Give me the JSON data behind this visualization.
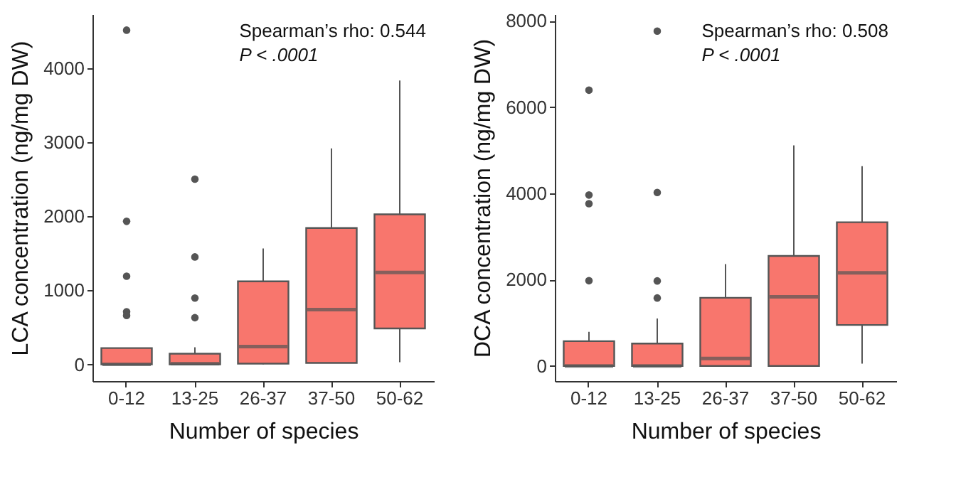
{
  "chart_data": [
    {
      "type": "box",
      "categories": [
        "0-12",
        "13-25",
        "26-37",
        "37-50",
        "50-62"
      ],
      "xlabel": "Number of species",
      "ylabel": "LCA concentration (ng/mg DW)",
      "ylim": [
        -225,
        4725
      ],
      "yticks": [
        0,
        1000,
        2000,
        3000,
        4000
      ],
      "annotations": [
        "Spearman’s rho: 0.544",
        "P < .0001"
      ],
      "series": [
        {
          "color": "#f8766d",
          "boxes": [
            {
              "low": 0,
              "q1": 0,
              "median": 0,
              "q3": 220,
              "high": 220,
              "outliers": [
                4510,
                1930,
                1190,
                710,
                660
              ]
            },
            {
              "low": 0,
              "q1": 0,
              "median": 10,
              "q3": 145,
              "high": 230,
              "outliers": [
                2500,
                1450,
                895,
                630
              ]
            },
            {
              "low": 0,
              "q1": 10,
              "median": 240,
              "q3": 1120,
              "high": 1565
            },
            {
              "low": 20,
              "q1": 20,
              "median": 740,
              "q3": 1840,
              "high": 2915
            },
            {
              "low": 30,
              "q1": 485,
              "median": 1240,
              "q3": 2025,
              "high": 3830
            }
          ]
        }
      ]
    },
    {
      "type": "box",
      "categories": [
        "0-12",
        "13-25",
        "26-37",
        "37-50",
        "50-62"
      ],
      "xlabel": "Number of species",
      "ylabel": "DCA concentration (ng/mg DW)",
      "ylim": [
        -350,
        8150
      ],
      "yticks": [
        0,
        2000,
        4000,
        6000,
        8000
      ],
      "annotations": [
        "Spearman’s rho: 0.508",
        "P < .0001"
      ],
      "series": [
        {
          "color": "#f8766d",
          "boxes": [
            {
              "low": 0,
              "q1": 0,
              "median": 0,
              "q3": 575,
              "high": 790,
              "outliers": [
                6390,
                3960,
                3760,
                1975
              ]
            },
            {
              "low": 0,
              "q1": 0,
              "median": 0,
              "q3": 520,
              "high": 1100,
              "outliers": [
                7760,
                4020,
                1970,
                1575
              ]
            },
            {
              "low": 0,
              "q1": 0,
              "median": 175,
              "q3": 1580,
              "high": 2360
            },
            {
              "low": 0,
              "q1": 0,
              "median": 1600,
              "q3": 2550,
              "high": 5110
            },
            {
              "low": 55,
              "q1": 950,
              "median": 2160,
              "q3": 3330,
              "high": 4630
            }
          ]
        }
      ]
    }
  ]
}
